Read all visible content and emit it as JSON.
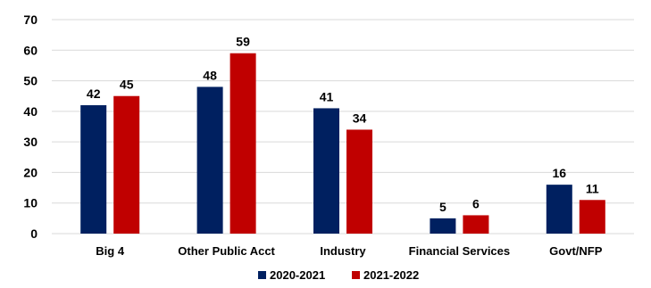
{
  "chart_data": {
    "type": "bar",
    "title": "",
    "xlabel": "",
    "ylabel": "",
    "ylim": [
      0,
      70
    ],
    "yticks": [
      0,
      10,
      20,
      30,
      40,
      50,
      60,
      70
    ],
    "grid": true,
    "legend_position": "bottom",
    "categories": [
      "Big 4",
      "Other Public Acct",
      "Industry",
      "Financial Services",
      "Govt/NFP"
    ],
    "series": [
      {
        "name": "2020-2021",
        "color": "#002060",
        "values": [
          42,
          48,
          41,
          5,
          16
        ]
      },
      {
        "name": "2021-2022",
        "color": "#C00000",
        "values": [
          45,
          59,
          34,
          6,
          11
        ]
      }
    ],
    "data_labels": true
  }
}
